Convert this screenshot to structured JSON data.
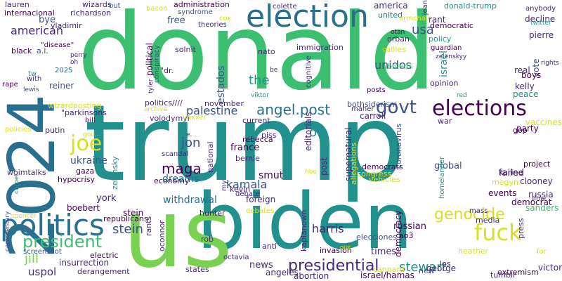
{
  "palette": {
    "green": "#3dbf72",
    "teal": "#22908c",
    "lime": "#7ad151",
    "blue": "#2a6f8e",
    "navy": "#3b528b",
    "purple": "#440154",
    "violet": "#482878",
    "yellow": "#d9e021",
    "light": "#b5de2b"
  },
  "words": [
    "donald",
    "trump",
    "biden",
    "us",
    "2024",
    "election",
    "politics",
    "elections",
    "fuck",
    "joe",
    "presidential",
    "genocide",
    "govt",
    "angel.post",
    "president",
    "american",
    "usa",
    "stein",
    "maga",
    "jill",
    "palestine",
    "harris",
    "kamala",
    "jon",
    "dreams",
    "withdrawal",
    "stewart",
    "the",
    "of",
    "unidos",
    "estados",
    "ukraine",
    "smut",
    "france",
    "bernie",
    "york",
    "hunter",
    "stein",
    "uspol",
    "news",
    "angeles",
    "times",
    "elecciones",
    "invasion",
    "russian",
    "karine",
    "clooney",
    "project",
    "russia",
    "democrat",
    "sanders",
    "events",
    "failed",
    "peace",
    "vote",
    "boys",
    "kelly",
    "real",
    "pierre",
    "decline",
    "anybody",
    "twitter",
    "rant",
    "donald-trump",
    "america",
    "united",
    "democratic",
    "otan",
    "orban",
    "policy",
    "zelenskyy",
    "israel",
    "opinion",
    "guardian",
    "rallies",
    "bidens",
    "immigration",
    "cognitive",
    "nato",
    "free",
    "theories",
    "cox",
    "colette",
    "syndrome",
    "bacon",
    "administration",
    "wizards",
    "richardson",
    "bye",
    "lauren",
    "internacional",
    "vladimir",
    "black",
    "a.i.",
    "\"disease\"",
    "2025",
    "reiner",
    "rape",
    "lewis",
    "wizardposting",
    "\"parkinsons",
    "bill",
    "policies",
    "putin",
    "woimtalks",
    "gaza",
    "hypocrisy",
    "zelensky",
    "boebert",
    "republicans",
    "screenshot",
    "electric",
    "insurrection",
    "derangement",
    "commentary",
    "spencer",
    "carpet",
    "political",
    "conspiracy",
    "solnit",
    "\"dr.",
    "politics////",
    "november",
    "volodymyr",
    "vaxxer",
    "economy",
    "national",
    "scandal",
    "debate",
    "kevin",
    "my",
    "debates",
    "foreign",
    "rebecca",
    "current",
    "editorials",
    "post",
    "supernatural",
    "democrats",
    "congress",
    "allegations",
    "vehicles",
    "coronavirus",
    "global",
    "megyn",
    "bothsiderism",
    "carroll",
    "maher",
    "jean",
    "vaccines",
    "gop",
    "party",
    "war",
    "homelander",
    "ao3",
    "mass",
    "media",
    "press",
    "time",
    "for",
    "heather",
    "victor",
    "extremism",
    "george",
    "new",
    "israel/hamas",
    "abortion",
    "cannard",
    "tumblr",
    "los",
    "anti",
    "states",
    "rants",
    "oconnor",
    "rob",
    "octavia",
    "kaplanown",
    "our",
    "democracy",
    "e.",
    "piss",
    "hbo",
    "posts",
    "viktor",
    "red",
    "rights",
    "perry",
    "oh",
    "with",
    "archive",
    "armchair",
    "but",
    "be",
    "god...",
    "tyler",
    "tw"
  ]
}
